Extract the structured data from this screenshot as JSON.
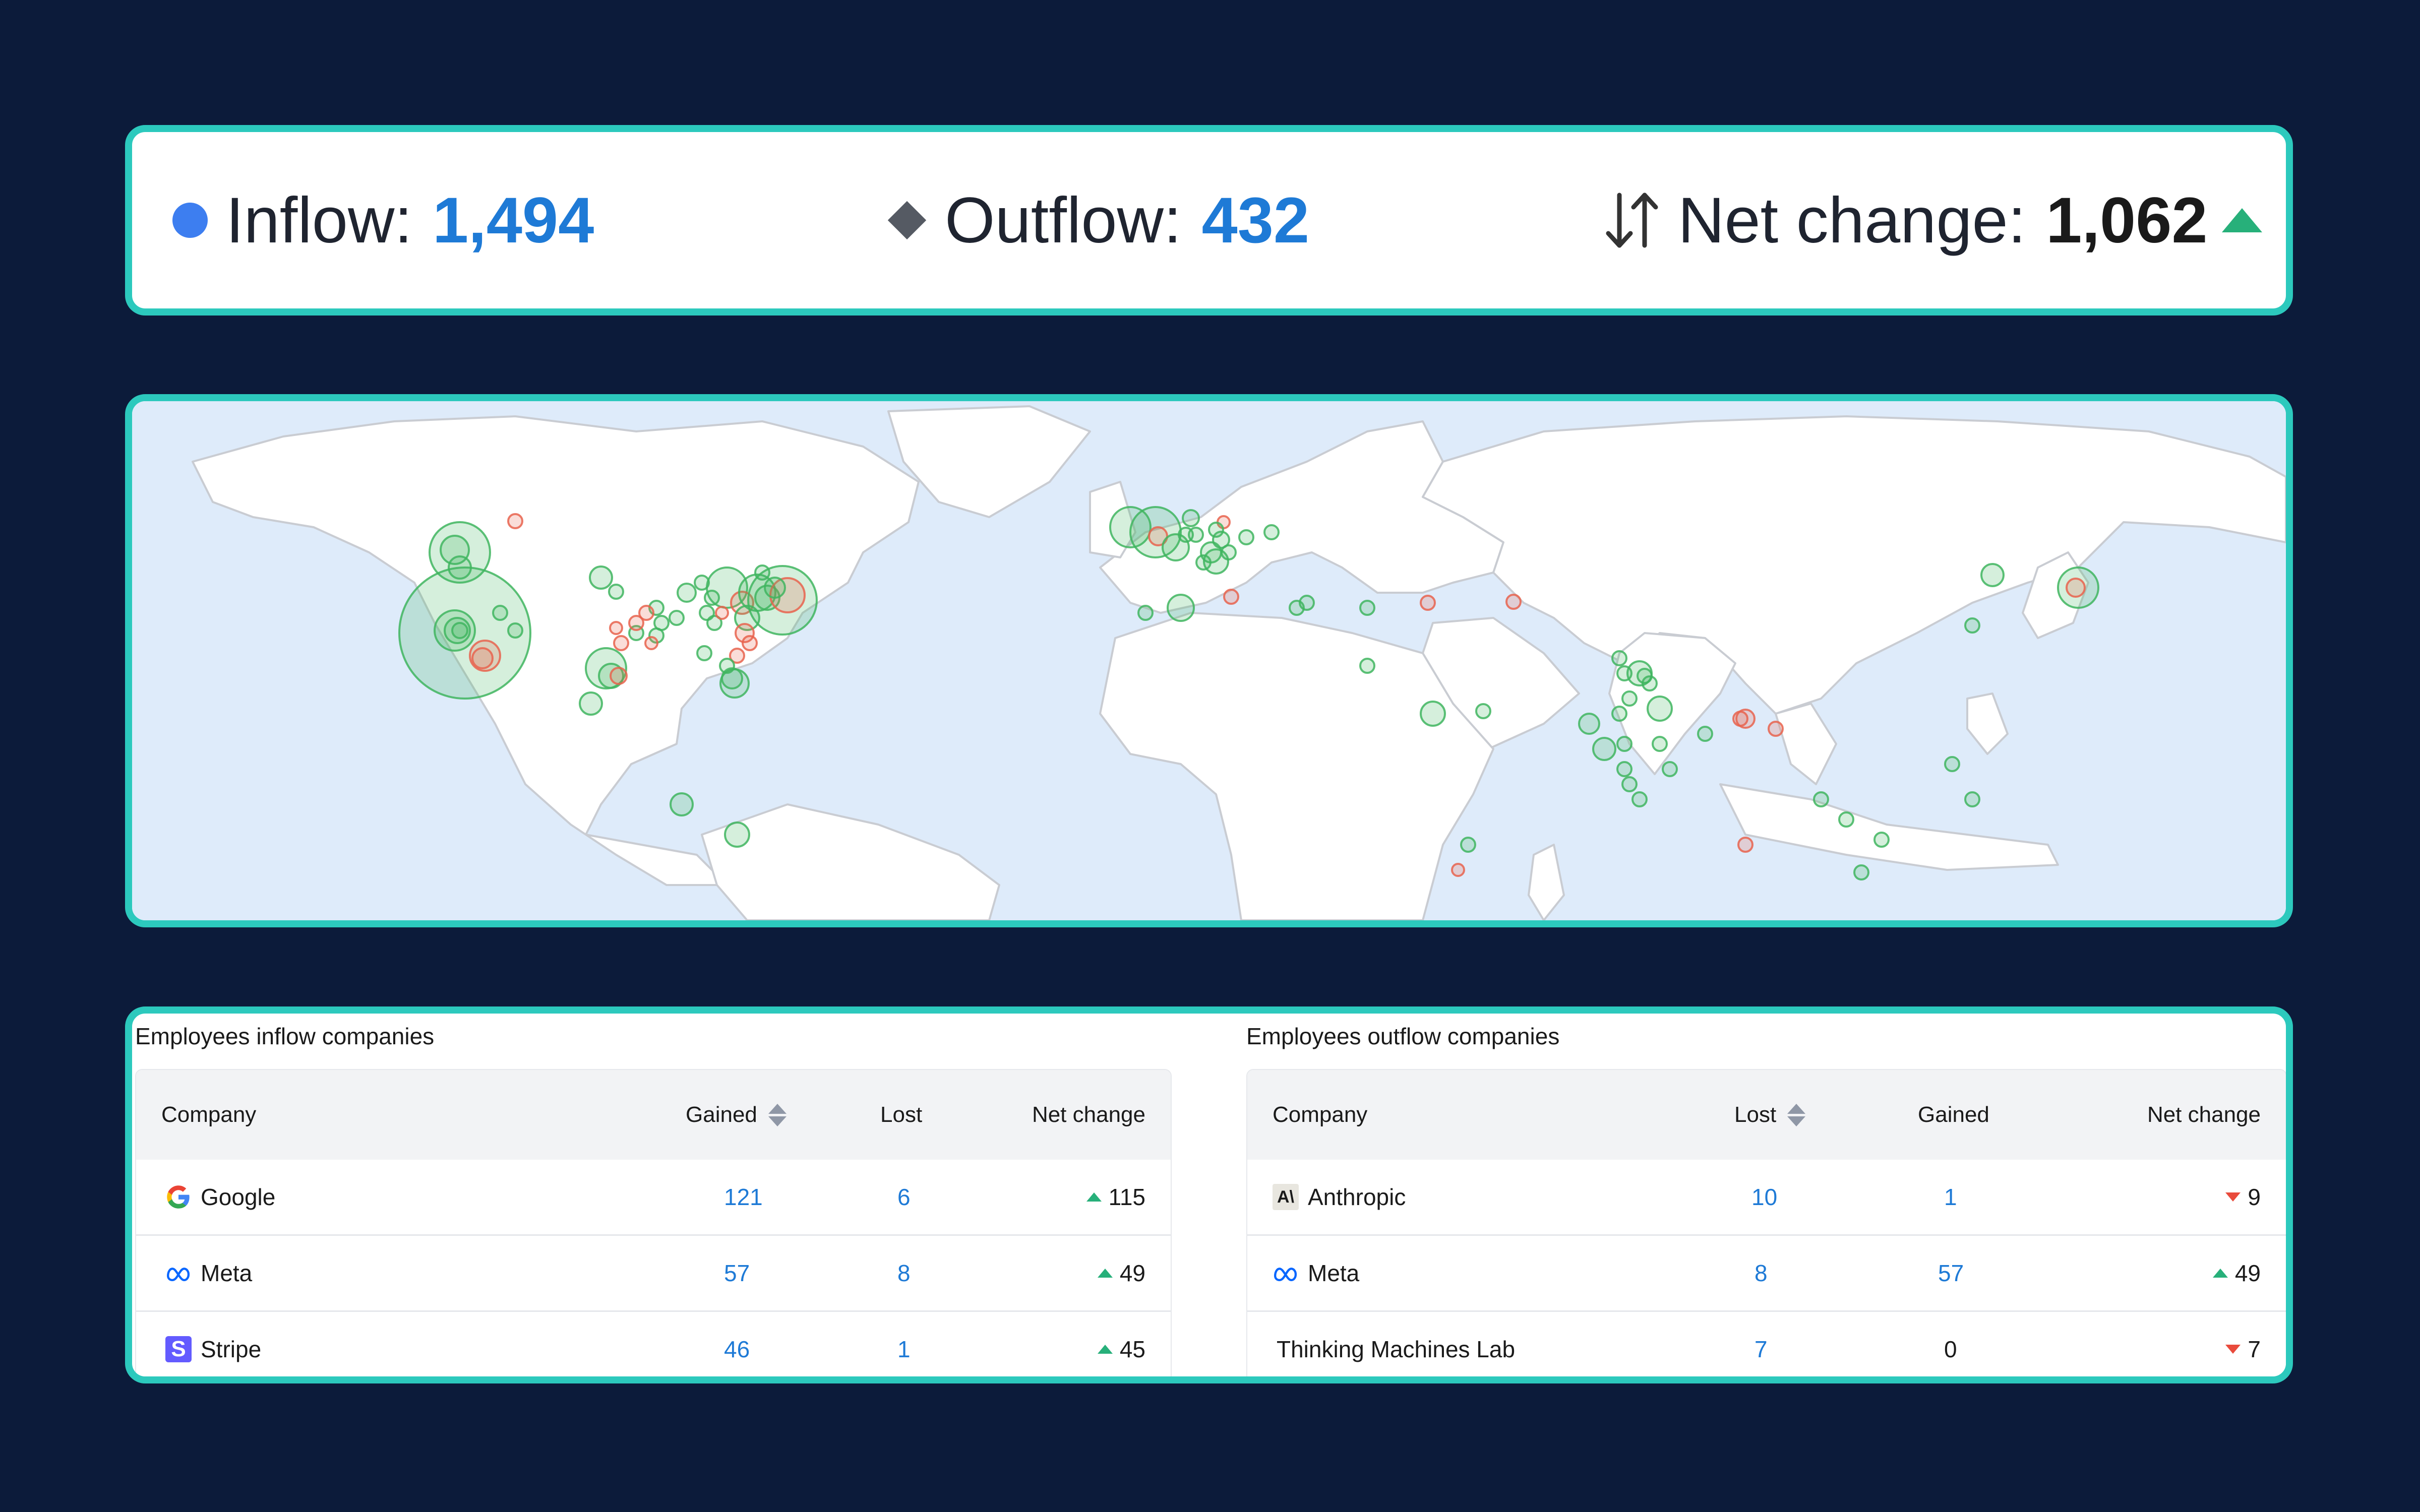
{
  "stats": {
    "inflow_label": "Inflow:",
    "inflow_value": "1,494",
    "outflow_label": "Outflow:",
    "outflow_value": "432",
    "net_label": "Net change:",
    "net_value": "1,062",
    "net_direction": "up"
  },
  "map": {
    "legend": {
      "inflow_color": "#3fb55f",
      "outflow_color": "#e8634d",
      "water_color": "#deebfa",
      "land_color": "#ffffff"
    }
  },
  "inflow_table": {
    "title": "Employees inflow companies",
    "columns": [
      "Company",
      "Gained",
      "Lost",
      "Net change"
    ],
    "rows": [
      {
        "company": "Google",
        "gained": "121",
        "lost": "6",
        "net": "115",
        "dir": "up",
        "logo": "google-logo"
      },
      {
        "company": "Meta",
        "gained": "57",
        "lost": "8",
        "net": "49",
        "dir": "up",
        "logo": "meta-logo"
      },
      {
        "company": "Stripe",
        "gained": "46",
        "lost": "1",
        "net": "45",
        "dir": "up",
        "logo": "stripe-logo",
        "logo_text": "S"
      }
    ]
  },
  "outflow_table": {
    "title": "Employees outflow companies",
    "columns": [
      "Company",
      "Lost",
      "Gained",
      "Net change"
    ],
    "rows": [
      {
        "company": "Anthropic",
        "lost": "10",
        "gained": "1",
        "net": "9",
        "dir": "down",
        "logo": "anthropic-logo",
        "logo_text": "A\\"
      },
      {
        "company": "Meta",
        "lost": "8",
        "gained": "57",
        "net": "49",
        "dir": "up",
        "logo": "meta-logo"
      },
      {
        "company": "Thinking Machines Lab",
        "lost": "7",
        "gained": "0",
        "net": "7",
        "dir": "down",
        "logo": ""
      }
    ]
  }
}
